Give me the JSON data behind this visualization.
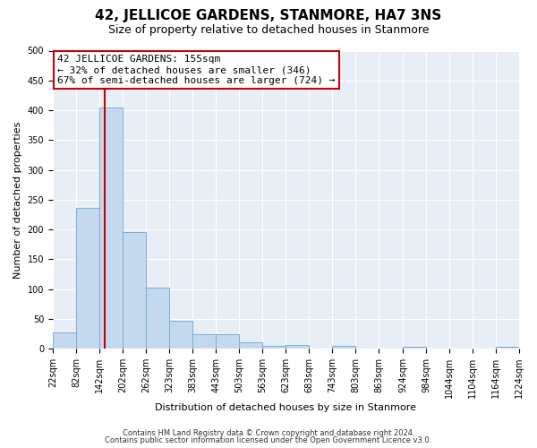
{
  "title": "42, JELLICOE GARDENS, STANMORE, HA7 3NS",
  "subtitle": "Size of property relative to detached houses in Stanmore",
  "xlabel": "Distribution of detached houses by size in Stanmore",
  "ylabel": "Number of detached properties",
  "property_label": "42 JELLICOE GARDENS: 155sqm",
  "annotation_line1": "← 32% of detached houses are smaller (346)",
  "annotation_line2": "67% of semi-detached houses are larger (724) →",
  "bin_edges": [
    22,
    82,
    142,
    202,
    262,
    323,
    383,
    443,
    503,
    563,
    623,
    683,
    743,
    803,
    863,
    924,
    984,
    1044,
    1104,
    1164,
    1224
  ],
  "bin_counts": [
    27,
    237,
    404,
    195,
    103,
    47,
    25,
    25,
    11,
    5,
    7,
    0,
    5,
    0,
    0,
    3,
    0,
    0,
    0,
    3
  ],
  "bar_color": "#c5d9ee",
  "bar_edge_color": "#7bafd4",
  "vline_color": "#cc0000",
  "vline_x": 155,
  "ylim": [
    0,
    500
  ],
  "yticks": [
    0,
    50,
    100,
    150,
    200,
    250,
    300,
    350,
    400,
    450,
    500
  ],
  "tick_labels": [
    "22sqm",
    "82sqm",
    "142sqm",
    "202sqm",
    "262sqm",
    "323sqm",
    "383sqm",
    "443sqm",
    "503sqm",
    "563sqm",
    "623sqm",
    "683sqm",
    "743sqm",
    "803sqm",
    "863sqm",
    "924sqm",
    "984sqm",
    "1044sqm",
    "1104sqm",
    "1164sqm",
    "1224sqm"
  ],
  "annotation_box_color": "#ffffff",
  "annotation_box_edge": "#cc0000",
  "footer_line1": "Contains HM Land Registry data © Crown copyright and database right 2024.",
  "footer_line2": "Contains public sector information licensed under the Open Government Licence v3.0.",
  "bg_color": "#e8eef5",
  "fig_bg_color": "#ffffff",
  "grid_color": "#ffffff",
  "title_fontsize": 11,
  "subtitle_fontsize": 9,
  "annotation_fontsize": 8,
  "axis_label_fontsize": 8,
  "tick_fontsize": 7,
  "footer_fontsize": 6
}
